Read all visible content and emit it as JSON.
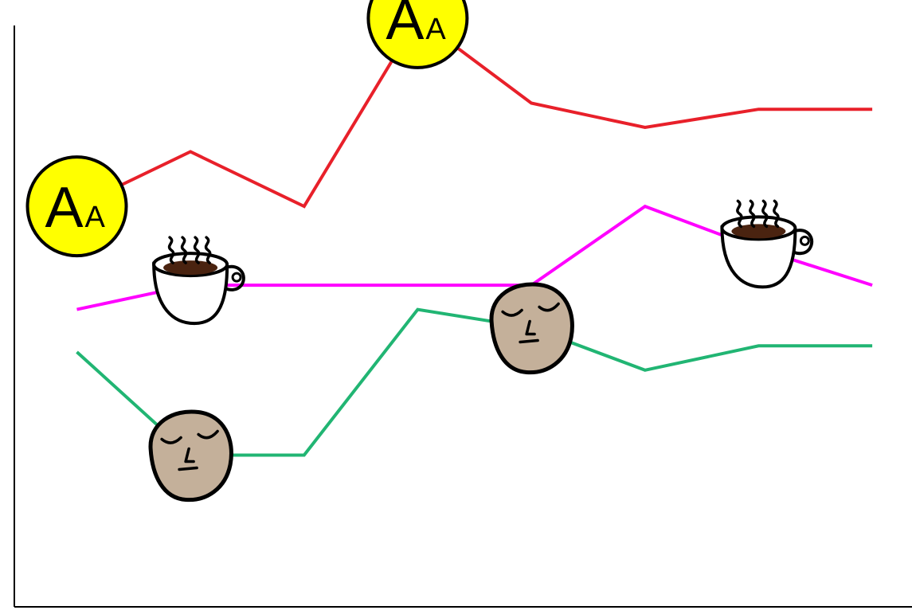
{
  "chart_data": {
    "type": "line",
    "title": "",
    "xlabel": "",
    "ylabel": "",
    "x": [
      0,
      1,
      2,
      3,
      4,
      5,
      6,
      7
    ],
    "xlim": [
      -0.55,
      7.35
    ],
    "ylim": [
      0,
      10
    ],
    "grid": false,
    "legend": "none",
    "series": [
      {
        "color": "#e8202a",
        "marker": "font-size-icon",
        "values": [
          6.6,
          7.5,
          6.6,
          9.7,
          8.3,
          7.9,
          8.2,
          8.2
        ]
      },
      {
        "color": "#ff00ff",
        "marker": "coffee-cup-icon",
        "values": [
          4.9,
          5.3,
          5.3,
          5.3,
          5.3,
          6.6,
          5.9,
          5.3
        ]
      },
      {
        "color": "#21b573",
        "marker": "sleepy-face-icon",
        "values": [
          4.2,
          2.5,
          2.5,
          4.9,
          4.6,
          3.9,
          4.3,
          4.3
        ]
      }
    ],
    "markers": [
      {
        "series": 0,
        "x_index": 0,
        "icon": "font-size-icon",
        "label_big": "A",
        "label_small": "A"
      },
      {
        "series": 0,
        "x_index": 3,
        "icon": "font-size-icon",
        "label_big": "A",
        "label_small": "A"
      },
      {
        "series": 1,
        "x_index": 1,
        "icon": "coffee-cup-icon"
      },
      {
        "series": 1,
        "x_index": 6,
        "icon": "coffee-cup-icon"
      },
      {
        "series": 2,
        "x_index": 1,
        "icon": "sleepy-face-icon"
      },
      {
        "series": 2,
        "x_index": 4,
        "icon": "sleepy-face-icon"
      }
    ]
  }
}
